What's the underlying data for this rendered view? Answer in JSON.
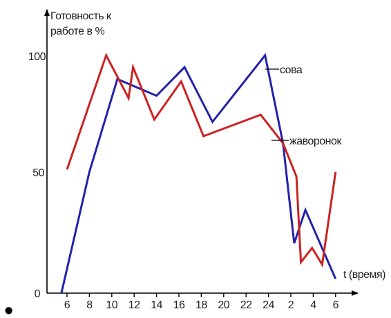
{
  "chart_data": {
    "type": "line",
    "ylabel_lines": [
      "Готовность к",
      "работе в %"
    ],
    "xlabel": "t (время)",
    "x_ticks": [
      "6",
      "8",
      "10",
      "12",
      "14",
      "16",
      "18",
      "20",
      "22",
      "24",
      "2",
      "4",
      "6"
    ],
    "y_ticks": [
      "0",
      "50",
      "100"
    ],
    "ylim": [
      0,
      100
    ],
    "grid": false,
    "series": [
      {
        "name": "сова",
        "color": "#2222aa",
        "points": [
          {
            "x": 5.5,
            "y": 0
          },
          {
            "x": 8,
            "y": 51
          },
          {
            "x": 10.5,
            "y": 90
          },
          {
            "x": 14,
            "y": 83
          },
          {
            "x": 16.5,
            "y": 95
          },
          {
            "x": 19,
            "y": 72
          },
          {
            "x": 23.7,
            "y": 100
          },
          {
            "x": 25.3,
            "y": 63
          },
          {
            "x": 26.3,
            "y": 21
          },
          {
            "x": 27.3,
            "y": 35
          },
          {
            "x": 30,
            "y": 6
          }
        ]
      },
      {
        "name": "жаворонок",
        "color": "#cc2222",
        "points": [
          {
            "x": 6,
            "y": 52
          },
          {
            "x": 9.5,
            "y": 100
          },
          {
            "x": 11.5,
            "y": 82
          },
          {
            "x": 11.9,
            "y": 95
          },
          {
            "x": 13.8,
            "y": 73
          },
          {
            "x": 16.2,
            "y": 89
          },
          {
            "x": 18.2,
            "y": 66
          },
          {
            "x": 23.3,
            "y": 75
          },
          {
            "x": 25.3,
            "y": 63
          },
          {
            "x": 26.5,
            "y": 49
          },
          {
            "x": 26.9,
            "y": 13
          },
          {
            "x": 27.9,
            "y": 19
          },
          {
            "x": 28.8,
            "y": 12
          },
          {
            "x": 30,
            "y": 51
          }
        ]
      }
    ]
  },
  "bullet": "•"
}
